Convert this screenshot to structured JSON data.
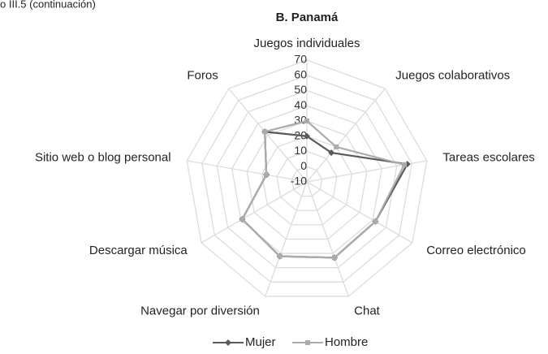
{
  "header": "o III.5 (continuación)",
  "chart_data": {
    "type": "radar",
    "title": "B. Panamá",
    "categories": [
      "Juegos individuales",
      "Juegos colaborativos",
      "Tareas escolares",
      "Correo electrónico",
      "Chat",
      "Navegar por diversión",
      "Descargar música",
      "Sitio web o blog personal",
      "Foros"
    ],
    "series": [
      {
        "name": "Mujer",
        "color": "#5a5a5a",
        "values": [
          20,
          15,
          57,
          42,
          43,
          42,
          39,
          17,
          33
        ]
      },
      {
        "name": "Hombre",
        "color": "#ababab",
        "values": [
          30,
          20,
          55,
          42,
          43,
          42,
          39,
          17,
          33
        ]
      }
    ],
    "ylim": [
      -10,
      70
    ],
    "yticks": [
      -10,
      0,
      10,
      20,
      30,
      40,
      50,
      60,
      70
    ],
    "grid": true,
    "legend": "bottom"
  }
}
